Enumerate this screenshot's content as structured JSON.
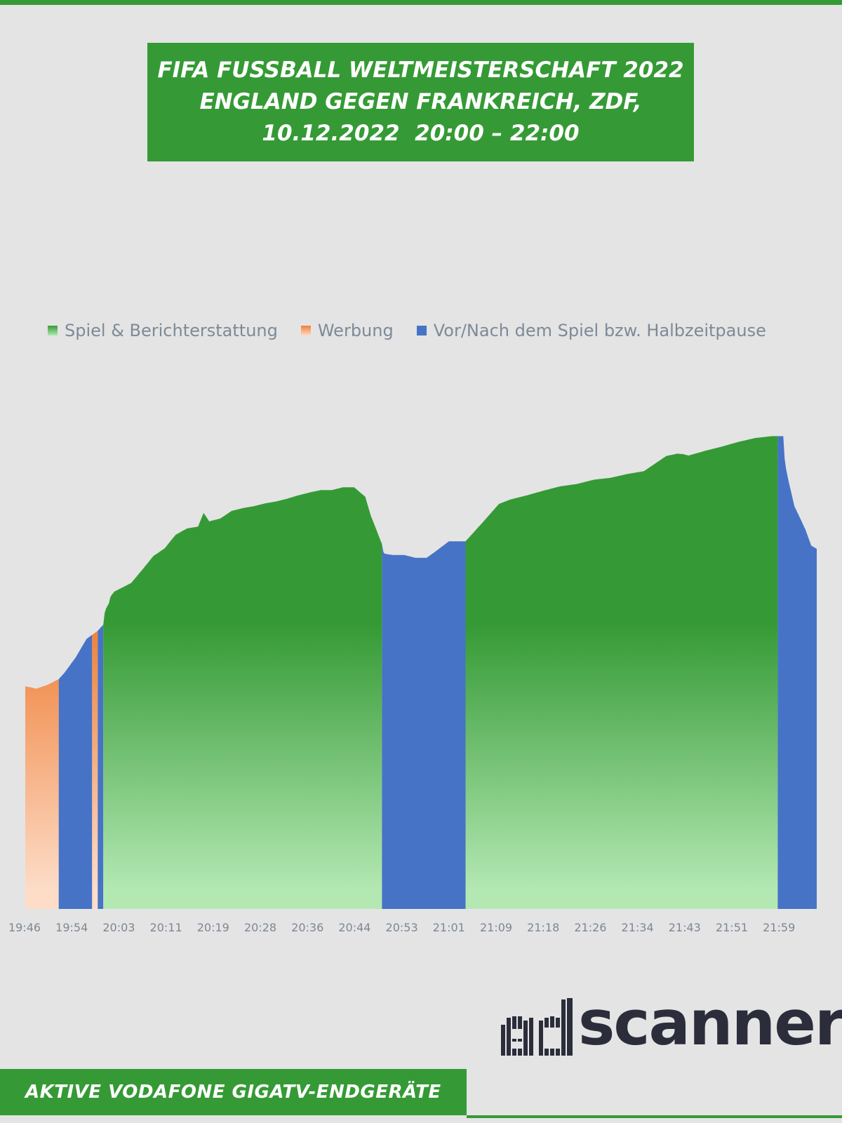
{
  "colors": {
    "brand_green": "#359a35",
    "background": "#e4e4e4",
    "logo_dark": "#2b2d3b",
    "axis_text": "#7d8794"
  },
  "header": {
    "title_lines": [
      "FIFA FUSSBALL WELTMEISTERSCHAFT 2022",
      "ENGLAND GEGEN FRANKREICH, ZDF,",
      "10.12.2022  20:00 – 22:00"
    ]
  },
  "footer": {
    "label": "AKTIVE VODAFONE GIGATV-ENDGERÄTE"
  },
  "logo": {
    "text": "adscanner",
    "word": "scanner"
  },
  "chart_data": {
    "type": "area",
    "title": "",
    "xlabel": "",
    "ylabel": "",
    "y_axis_shown": false,
    "grid": false,
    "legend_placement": "top",
    "ylim": [
      0,
      100
    ],
    "x_tick_labels": [
      "19:46",
      "19:54",
      "20:03",
      "20:11",
      "20:19",
      "20:28",
      "20:36",
      "20:44",
      "20:53",
      "21:01",
      "21:09",
      "21:18",
      "21:26",
      "21:34",
      "21:43",
      "21:51",
      "21:59"
    ],
    "legend": [
      {
        "name": "Spiel & Berichterstattung",
        "key": "game",
        "color": "#359a35",
        "color_light": "#b3e8b3"
      },
      {
        "name": "Werbung",
        "key": "ad",
        "color": "#ef8038",
        "color_light": "#fddcc8"
      },
      {
        "name": "Vor/Nach dem Spiel bzw. Halbzeitpause",
        "key": "pre",
        "color": "#4673c6",
        "color_light": "#4673c6"
      }
    ],
    "x": [
      "19:46",
      "19:48",
      "19:50",
      "19:52",
      "19:53",
      "19:55",
      "19:57",
      "19:59",
      "20:00",
      "20:00",
      "20:01",
      "20:01",
      "20:02",
      "20:05",
      "20:07",
      "20:09",
      "20:11",
      "20:13",
      "20:15",
      "20:17",
      "20:18",
      "20:19",
      "20:21",
      "20:23",
      "20:25",
      "20:27",
      "20:29",
      "20:31",
      "20:33",
      "20:35",
      "20:37",
      "20:39",
      "20:41",
      "20:43",
      "20:45",
      "20:47",
      "20:48",
      "20:50",
      "20:50",
      "20:52",
      "20:54",
      "20:56",
      "20:58",
      "21:00",
      "21:02",
      "21:03",
      "21:05",
      "21:05",
      "21:08",
      "21:11",
      "21:13",
      "21:16",
      "21:19",
      "21:22",
      "21:25",
      "21:28",
      "21:31",
      "21:34",
      "21:37",
      "21:39",
      "21:41",
      "21:43",
      "21:44",
      "21:45",
      "21:48",
      "21:51",
      "21:54",
      "21:57",
      "22:00",
      "22:02",
      "22:02",
      "22:03",
      "22:04",
      "22:06",
      "22:07",
      "22:08"
    ],
    "segments": [
      {
        "category": "ad",
        "from": "19:46",
        "to": "19:52"
      },
      {
        "category": "pre",
        "from": "19:52",
        "to": "19:58"
      },
      {
        "category": "ad",
        "from": "19:58",
        "to": "19:59"
      },
      {
        "category": "pre",
        "from": "19:59",
        "to": "20:00"
      },
      {
        "category": "game",
        "from": "20:00",
        "to": "20:50"
      },
      {
        "category": "pre",
        "from": "20:50",
        "to": "21:05"
      },
      {
        "category": "game",
        "from": "21:05",
        "to": "22:01"
      },
      {
        "category": "pre",
        "from": "22:01",
        "to": "22:08"
      }
    ],
    "values": [
      47,
      46.5,
      47.3,
      48.5,
      49.8,
      53,
      57,
      58.7,
      60,
      63,
      64.5,
      66,
      67,
      68.8,
      71.6,
      74.5,
      76.1,
      79,
      80.3,
      80.7,
      83.6,
      81.8,
      82.4,
      84,
      84.6,
      85,
      85.6,
      86,
      86.6,
      87.3,
      87.9,
      88.4,
      88.4,
      89,
      89,
      87,
      83,
      77,
      75,
      74.7,
      74.7,
      74.1,
      74.1,
      75.8,
      77.6,
      77.6,
      77.6,
      78,
      81.5,
      85.5,
      86.4,
      87.3,
      88.3,
      89.2,
      89.7,
      90.6,
      91,
      91.8,
      92.4,
      94,
      95.6,
      96.1,
      96,
      95.7,
      96.7,
      97.6,
      98.6,
      99.4,
      99.8,
      99.8,
      94,
      90,
      85,
      80,
      76.7,
      76
    ]
  }
}
